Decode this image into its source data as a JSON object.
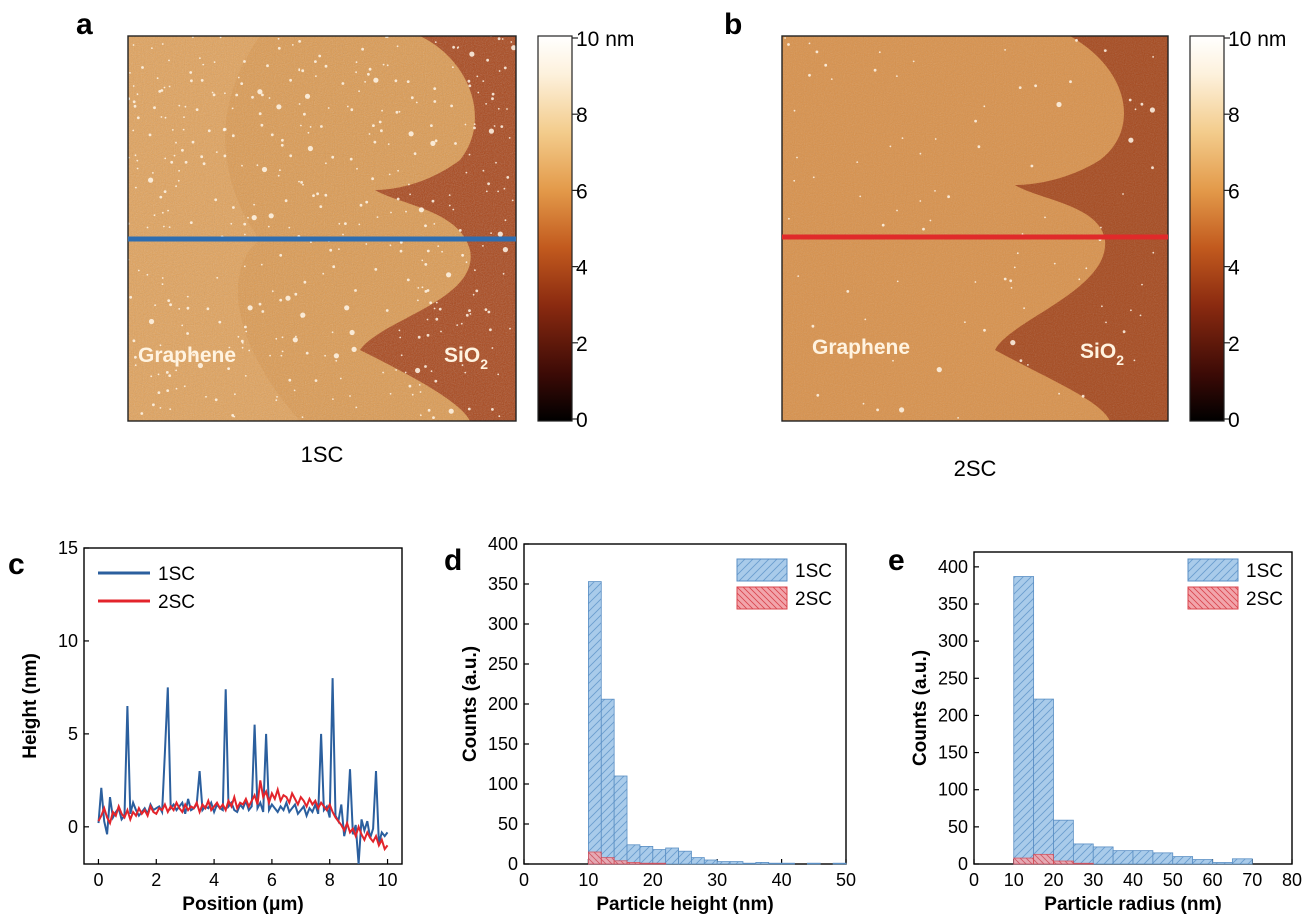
{
  "panels": {
    "a": {
      "letter": "a",
      "caption": "1SC",
      "graphene_label": "Graphene",
      "sio2_label": "SiO",
      "sio2_sub": "2",
      "line_color": "#2e6db0"
    },
    "b": {
      "letter": "b",
      "caption": "2SC",
      "graphene_label": "Graphene",
      "sio2_label": "SiO",
      "sio2_sub": "2",
      "line_color": "#e02a2a"
    }
  },
  "colorbar": {
    "ticks": [
      "10 nm",
      "8",
      "6",
      "4",
      "2",
      "0"
    ],
    "stops": [
      "#000000",
      "#3b0a06",
      "#8a2a10",
      "#c25a1e",
      "#e39a4a",
      "#f3cc8c",
      "#fdf1dc",
      "#ffffff"
    ]
  },
  "afm_colors": {
    "substrate_dark": "#7a2e10",
    "substrate_mid": "#a84a1c",
    "graphene_light": "#e3a55c",
    "graphene_mid": "#d48a40",
    "particle": "#fff7ea"
  },
  "chart_data": [
    {
      "id": "c",
      "letter": "c",
      "type": "line",
      "xlabel": "Position (μm)",
      "ylabel": "Height (nm)",
      "xlim": [
        -0.5,
        10.5
      ],
      "ylim": [
        -2,
        15
      ],
      "xticks": [
        0,
        2,
        4,
        6,
        8,
        10
      ],
      "yticks": [
        0,
        5,
        10,
        15
      ],
      "legend": "top-left",
      "series": [
        {
          "name": "1SC",
          "color": "#2b5f9e",
          "x": [
            0,
            0.1,
            0.2,
            0.3,
            0.4,
            0.5,
            0.6,
            0.7,
            0.8,
            0.9,
            1.0,
            1.1,
            1.2,
            1.3,
            1.4,
            1.5,
            1.6,
            1.7,
            1.8,
            1.9,
            2.0,
            2.1,
            2.2,
            2.3,
            2.4,
            2.5,
            2.6,
            2.7,
            2.8,
            2.9,
            3.0,
            3.1,
            3.2,
            3.3,
            3.4,
            3.5,
            3.6,
            3.7,
            3.8,
            3.9,
            4.0,
            4.1,
            4.2,
            4.3,
            4.4,
            4.5,
            4.6,
            4.7,
            4.8,
            4.9,
            5.0,
            5.1,
            5.2,
            5.3,
            5.4,
            5.5,
            5.6,
            5.7,
            5.8,
            5.9,
            6.0,
            6.1,
            6.2,
            6.3,
            6.4,
            6.5,
            6.6,
            6.7,
            6.8,
            6.9,
            7.0,
            7.1,
            7.2,
            7.3,
            7.4,
            7.5,
            7.6,
            7.7,
            7.8,
            7.9,
            8.0,
            8.1,
            8.2,
            8.3,
            8.4,
            8.5,
            8.6,
            8.7,
            8.8,
            8.9,
            9.0,
            9.1,
            9.2,
            9.3,
            9.4,
            9.5,
            9.6,
            9.7,
            9.8,
            9.9,
            10.0
          ],
          "y": [
            0.2,
            2.1,
            0.3,
            -0.4,
            1.6,
            0.5,
            0.8,
            1.0,
            0.4,
            0.6,
            6.5,
            0.7,
            1.3,
            0.9,
            0.6,
            0.8,
            1.0,
            0.7,
            1.2,
            0.9,
            1.0,
            1.1,
            0.8,
            4.0,
            7.5,
            1.0,
            1.2,
            0.9,
            1.1,
            1.3,
            0.7,
            1.5,
            0.9,
            1.0,
            1.2,
            3.0,
            0.9,
            1.1,
            1.0,
            1.3,
            0.8,
            1.2,
            1.0,
            0.9,
            7.4,
            1.1,
            1.3,
            0.9,
            0.8,
            1.2,
            1.0,
            1.4,
            0.9,
            1.1,
            5.5,
            1.0,
            1.3,
            0.8,
            5.0,
            0.9,
            1.2,
            1.0,
            0.8,
            1.1,
            0.9,
            1.3,
            0.8,
            1.0,
            1.2,
            0.7,
            0.9,
            1.1,
            0.6,
            1.0,
            0.8,
            1.2,
            0.7,
            5.0,
            0.9,
            1.1,
            0.5,
            8.0,
            0.6,
            0.3,
            1.2,
            -0.5,
            0.2,
            3.1,
            -0.4,
            0.1,
            -2.0,
            0.4,
            -0.2,
            0.3,
            -0.6,
            -0.1,
            3.0,
            -0.9,
            -0.3,
            -0.5,
            -0.3
          ]
        },
        {
          "name": "2SC",
          "color": "#e3242b",
          "x": [
            0,
            0.1,
            0.2,
            0.3,
            0.4,
            0.5,
            0.6,
            0.7,
            0.8,
            0.9,
            1.0,
            1.1,
            1.2,
            1.3,
            1.4,
            1.5,
            1.6,
            1.7,
            1.8,
            1.9,
            2.0,
            2.1,
            2.2,
            2.3,
            2.4,
            2.5,
            2.6,
            2.7,
            2.8,
            2.9,
            3.0,
            3.1,
            3.2,
            3.3,
            3.4,
            3.5,
            3.6,
            3.7,
            3.8,
            3.9,
            4.0,
            4.1,
            4.2,
            4.3,
            4.4,
            4.5,
            4.6,
            4.7,
            4.8,
            4.9,
            5.0,
            5.1,
            5.2,
            5.3,
            5.4,
            5.5,
            5.6,
            5.7,
            5.8,
            5.9,
            6.0,
            6.1,
            6.2,
            6.3,
            6.4,
            6.5,
            6.6,
            6.7,
            6.8,
            6.9,
            7.0,
            7.1,
            7.2,
            7.3,
            7.4,
            7.5,
            7.6,
            7.7,
            7.8,
            7.9,
            8.0,
            8.1,
            8.2,
            8.3,
            8.4,
            8.5,
            8.6,
            8.7,
            8.8,
            8.9,
            9.0,
            9.1,
            9.2,
            9.3,
            9.4,
            9.5,
            9.6,
            9.7,
            9.8,
            9.9,
            10.0
          ],
          "y": [
            0.3,
            0.6,
            1.0,
            0.5,
            0.2,
            0.8,
            0.6,
            1.1,
            0.7,
            0.5,
            0.9,
            0.4,
            0.8,
            0.6,
            1.0,
            0.7,
            0.9,
            0.6,
            1.1,
            0.8,
            0.7,
            1.0,
            0.9,
            1.2,
            0.8,
            1.1,
            0.9,
            1.3,
            1.0,
            0.8,
            1.2,
            0.9,
            1.1,
            1.0,
            1.3,
            0.8,
            1.2,
            1.0,
            1.4,
            0.9,
            1.1,
            1.3,
            1.0,
            1.2,
            0.9,
            1.4,
            1.1,
            1.6,
            1.0,
            1.3,
            1.2,
            1.5,
            1.1,
            1.4,
            1.7,
            1.2,
            2.5,
            1.6,
            1.9,
            1.3,
            1.8,
            1.5,
            2.0,
            1.4,
            1.7,
            1.6,
            1.3,
            1.8,
            1.5,
            1.2,
            1.6,
            1.4,
            1.1,
            1.5,
            1.2,
            1.4,
            1.0,
            1.3,
            1.1,
            0.9,
            1.2,
            0.8,
            0.5,
            0.3,
            0.1,
            -0.2,
            0.2,
            -0.3,
            -0.1,
            -0.5,
            0.0,
            -0.4,
            -0.7,
            -0.3,
            -0.6,
            -0.8,
            -0.5,
            -1.0,
            -0.7,
            -1.2,
            -1.0
          ]
        }
      ]
    },
    {
      "id": "d",
      "letter": "d",
      "type": "bar",
      "xlabel": "Particle height (nm)",
      "ylabel": "Counts (a.u.)",
      "xlim": [
        0,
        50
      ],
      "ylim": [
        0,
        400
      ],
      "xticks": [
        0,
        10,
        20,
        30,
        40,
        50
      ],
      "yticks": [
        0,
        50,
        100,
        150,
        200,
        250,
        300,
        350,
        400
      ],
      "legend": "top-right",
      "bin_width": 2,
      "series": [
        {
          "name": "1SC",
          "color": "#9cc3e5",
          "edge": "#5a8fc4",
          "bins": [
            10,
            12,
            14,
            16,
            18,
            20,
            22,
            24,
            26,
            28,
            30,
            32,
            34,
            36,
            38,
            40,
            42,
            44,
            46,
            48
          ],
          "values": [
            353,
            206,
            110,
            24,
            22,
            18,
            20,
            16,
            8,
            5,
            3,
            3,
            1,
            2,
            1,
            1,
            0,
            1,
            0,
            1
          ]
        },
        {
          "name": "2SC",
          "color": "#f0a0a6",
          "edge": "#d9454e",
          "bins": [
            10,
            12,
            14,
            16,
            18,
            20,
            22
          ],
          "values": [
            15,
            8,
            4,
            2,
            1,
            1,
            0
          ]
        }
      ]
    },
    {
      "id": "e",
      "letter": "e",
      "type": "bar",
      "xlabel": "Particle radius (nm)",
      "ylabel": "Counts (a.u.)",
      "xlim": [
        0,
        80
      ],
      "ylim": [
        0,
        420
      ],
      "xticks": [
        0,
        10,
        20,
        30,
        40,
        50,
        60,
        70,
        80
      ],
      "yticks": [
        0,
        50,
        100,
        150,
        200,
        250,
        300,
        350,
        400
      ],
      "legend": "top-right",
      "bin_width": 5,
      "series": [
        {
          "name": "1SC",
          "color": "#9cc3e5",
          "edge": "#5a8fc4",
          "bins": [
            10,
            15,
            20,
            25,
            30,
            35,
            40,
            45,
            50,
            55,
            60,
            65,
            70
          ],
          "values": [
            387,
            222,
            59,
            27,
            23,
            18,
            18,
            15,
            10,
            6,
            2,
            7,
            0
          ]
        },
        {
          "name": "2SC",
          "color": "#f0a0a6",
          "edge": "#d9454e",
          "bins": [
            10,
            15,
            20,
            25
          ],
          "values": [
            8,
            13,
            4,
            1
          ]
        }
      ]
    }
  ]
}
